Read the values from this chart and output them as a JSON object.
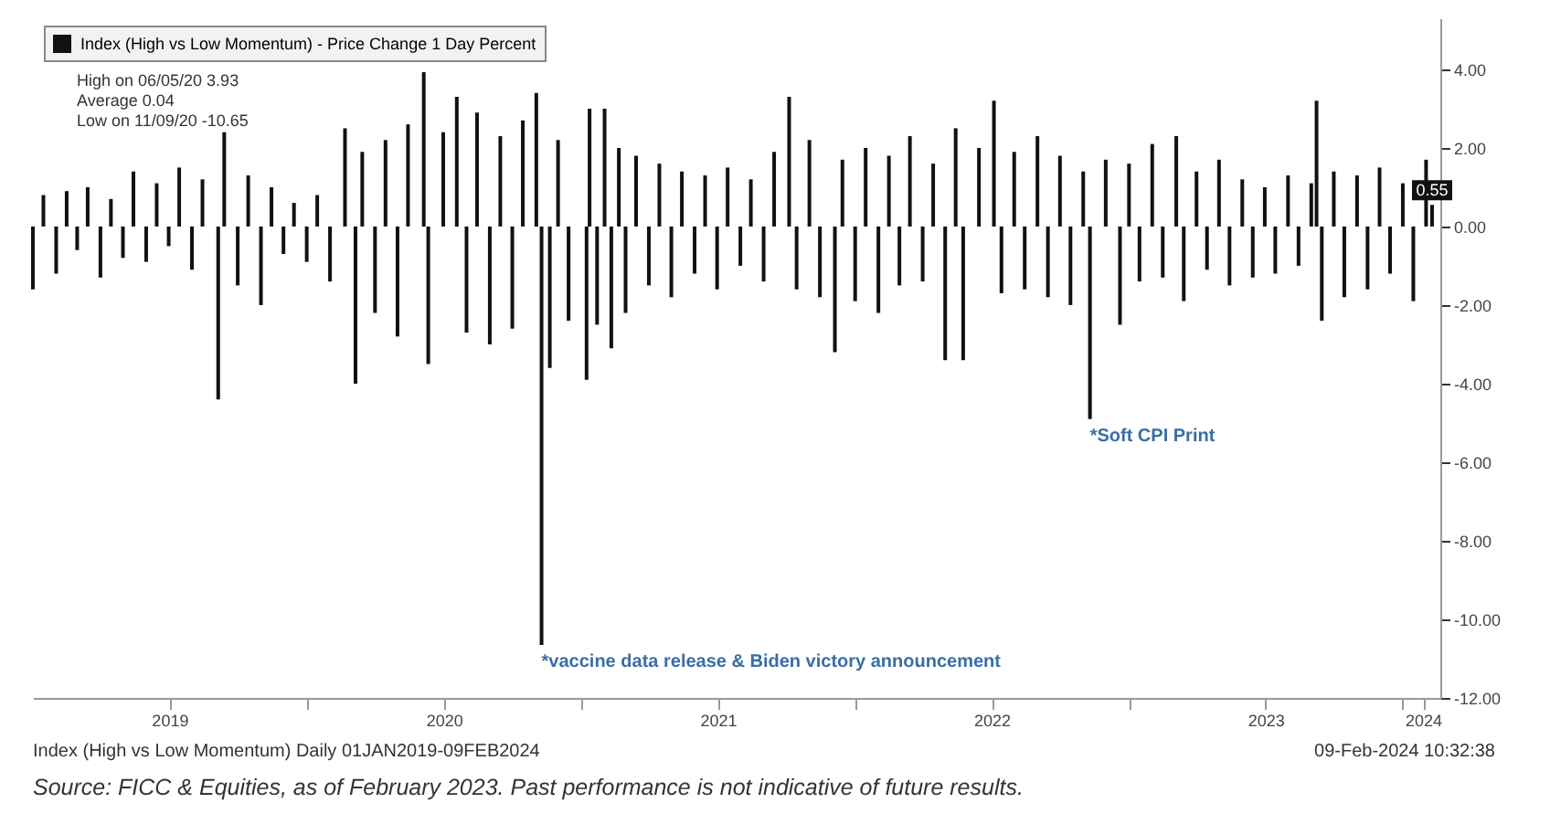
{
  "chart_data": {
    "type": "bar",
    "x": [
      "2019-01-01",
      "2019-01-15",
      "2019-02-01",
      "2019-02-15",
      "2019-03-01",
      "2019-03-15",
      "2019-04-01",
      "2019-04-15",
      "2019-05-01",
      "2019-05-15",
      "2019-06-01",
      "2019-06-15",
      "2019-07-01",
      "2019-07-15",
      "2019-08-01",
      "2019-08-15",
      "2019-09-05",
      "2019-09-13",
      "2019-10-01",
      "2019-10-15",
      "2019-11-01",
      "2019-11-15",
      "2019-12-01",
      "2019-12-15",
      "2020-01-01",
      "2020-01-15",
      "2020-02-01",
      "2020-02-21",
      "2020-03-06",
      "2020-03-15",
      "2020-04-01",
      "2020-04-15",
      "2020-05-01",
      "2020-05-15",
      "2020-06-05",
      "2020-06-11",
      "2020-07-01",
      "2020-07-19",
      "2020-08-01",
      "2020-08-15",
      "2020-09-01",
      "2020-09-15",
      "2020-10-01",
      "2020-10-15",
      "2020-11-02",
      "2020-11-09",
      "2020-11-20",
      "2020-12-01",
      "2020-12-15",
      "2021-01-08",
      "2021-01-12",
      "2021-01-22",
      "2021-02-01",
      "2021-02-10",
      "2021-02-20",
      "2021-03-01",
      "2021-03-15",
      "2021-04-01",
      "2021-04-15",
      "2021-05-01",
      "2021-05-15",
      "2021-06-01",
      "2021-06-15",
      "2021-07-01",
      "2021-07-15",
      "2021-08-01",
      "2021-08-15",
      "2021-09-01",
      "2021-09-15",
      "2021-10-05",
      "2021-10-15",
      "2021-11-01",
      "2021-11-15",
      "2021-12-05",
      "2021-12-15",
      "2022-01-01",
      "2022-01-15",
      "2022-02-01",
      "2022-02-15",
      "2022-03-01",
      "2022-03-15",
      "2022-04-01",
      "2022-04-15",
      "2022-05-01",
      "2022-05-15",
      "2022-05-25",
      "2022-06-15",
      "2022-07-05",
      "2022-07-15",
      "2022-08-01",
      "2022-08-15",
      "2022-09-01",
      "2022-09-15",
      "2022-10-01",
      "2022-10-15",
      "2022-11-01",
      "2022-11-10",
      "2022-12-01",
      "2022-12-20",
      "2023-01-01",
      "2023-01-15",
      "2023-02-01",
      "2023-02-15",
      "2023-03-05",
      "2023-03-15",
      "2023-04-01",
      "2023-04-15",
      "2023-05-01",
      "2023-05-15",
      "2023-06-01",
      "2023-06-15",
      "2023-07-01",
      "2023-07-15",
      "2023-08-01",
      "2023-08-15",
      "2023-09-01",
      "2023-09-08",
      "2023-09-15",
      "2023-10-01",
      "2023-10-15",
      "2023-11-01",
      "2023-11-15",
      "2023-12-01",
      "2023-12-15",
      "2024-01-01",
      "2024-01-15",
      "2024-02-01",
      "2024-02-09"
    ],
    "series": [
      {
        "name": "Index (High vs Low Momentum) - Price Change 1 Day Percent",
        "color": "#111111",
        "values": [
          -1.6,
          0.8,
          -1.2,
          0.9,
          -0.6,
          1.0,
          -1.3,
          0.7,
          -0.8,
          1.4,
          -0.9,
          1.1,
          -0.5,
          1.5,
          -1.1,
          1.2,
          -4.4,
          2.4,
          -1.5,
          1.3,
          -2.0,
          1.0,
          -0.7,
          0.6,
          -0.9,
          0.8,
          -1.4,
          2.5,
          -4.0,
          1.9,
          -2.2,
          2.2,
          -2.8,
          2.6,
          3.93,
          -3.5,
          2.4,
          3.3,
          -2.7,
          2.9,
          -3.0,
          2.3,
          -2.6,
          2.7,
          3.4,
          -10.65,
          -3.6,
          2.2,
          -2.4,
          -3.9,
          3.0,
          -2.5,
          3.0,
          -3.1,
          2.0,
          -2.2,
          1.8,
          -1.5,
          1.6,
          -1.8,
          1.4,
          -1.2,
          1.3,
          -1.6,
          1.5,
          -1.0,
          1.2,
          -1.4,
          1.9,
          3.3,
          -1.6,
          2.2,
          -1.8,
          -3.2,
          1.7,
          -1.9,
          2.0,
          -2.2,
          1.8,
          -1.5,
          2.3,
          -1.4,
          1.6,
          -3.4,
          2.5,
          -3.4,
          2.0,
          3.2,
          -1.7,
          1.9,
          -1.6,
          2.3,
          -1.8,
          1.8,
          -2.0,
          1.4,
          -4.9,
          1.7,
          -2.5,
          1.6,
          -1.4,
          2.1,
          -1.3,
          2.3,
          -1.9,
          1.4,
          -1.1,
          1.7,
          -1.5,
          1.2,
          -1.3,
          1.0,
          -1.2,
          1.3,
          -1.0,
          1.1,
          3.2,
          -2.4,
          1.4,
          -1.8,
          1.3,
          -1.6,
          1.5,
          -1.2,
          1.1,
          -1.9,
          1.7,
          0.55
        ],
        "value_labels": [
          null,
          null,
          null,
          null,
          null,
          null,
          null,
          null,
          null,
          null,
          null,
          null,
          null,
          null,
          null,
          null,
          null,
          null,
          null,
          null,
          null,
          null,
          null,
          null,
          null,
          null,
          null,
          null,
          null,
          null,
          null,
          null,
          null,
          null,
          null,
          null,
          null,
          null,
          null,
          null,
          null,
          null,
          null,
          null,
          null,
          null,
          null,
          null,
          null,
          null,
          null,
          null,
          null,
          null,
          null,
          null,
          null,
          null,
          null,
          null,
          null,
          null,
          null,
          null,
          null,
          null,
          null,
          null,
          null,
          null,
          null,
          null,
          null,
          null,
          null,
          null,
          null,
          null,
          null,
          null,
          null,
          null,
          null,
          null,
          null,
          null,
          null,
          null,
          null,
          null,
          null,
          null,
          null,
          null,
          null,
          null,
          null,
          null,
          null,
          null,
          null,
          null,
          null,
          null,
          null,
          null,
          null,
          null,
          null,
          null,
          null,
          null,
          null,
          null,
          null,
          null,
          null,
          null,
          null,
          null,
          null,
          null,
          null,
          null,
          null,
          null,
          null,
          "0.55"
        ]
      }
    ],
    "xlim": [
      "2019-01-01",
      "2024-02-20"
    ],
    "xticks": [
      {
        "value": "2019-07-02",
        "label": "2019"
      },
      {
        "value": "2020-01-01",
        "label": null
      },
      {
        "value": "2020-07-02",
        "label": "2020"
      },
      {
        "value": "2021-01-01",
        "label": null
      },
      {
        "value": "2021-07-02",
        "label": "2021"
      },
      {
        "value": "2022-01-01",
        "label": null
      },
      {
        "value": "2022-07-02",
        "label": "2022"
      },
      {
        "value": "2023-01-01",
        "label": null
      },
      {
        "value": "2023-07-02",
        "label": "2023"
      },
      {
        "value": "2024-01-01",
        "label": null
      },
      {
        "value": "2024-01-28",
        "label": "2024"
      }
    ],
    "ylim": [
      -12,
      5.3
    ],
    "yticks": [
      {
        "value": 4,
        "label": "4.00"
      },
      {
        "value": 2,
        "label": "2.00"
      },
      {
        "value": 0,
        "label": "0.00"
      },
      {
        "value": -2,
        "label": "-2.00"
      },
      {
        "value": -4,
        "label": "-4.00"
      },
      {
        "value": -6,
        "label": "-6.00"
      },
      {
        "value": -8,
        "label": "-8.00"
      },
      {
        "value": -10,
        "label": "-10.00"
      },
      {
        "value": -12,
        "label": "-12.00"
      }
    ],
    "legend": "top left",
    "annotations": [
      "High on 06/05/20   3.93",
      "Average   0.04",
      "Low on 11/09/20   -10.65",
      {
        "text": "*vaccine data release & Biden victory announcement",
        "x": "2020-11-09",
        "y": -10.65
      },
      {
        "text": "*Soft CPI Print",
        "x": "2022-11-10",
        "y": -4.9
      },
      "Index (High vs Low Momentum)  Daily 01JAN2019-09FEB2024",
      "09-Feb-2024 10:32:38",
      "Source: FICC & Equities, as of February 2023. Past performance is not indicative of future results."
    ]
  }
}
